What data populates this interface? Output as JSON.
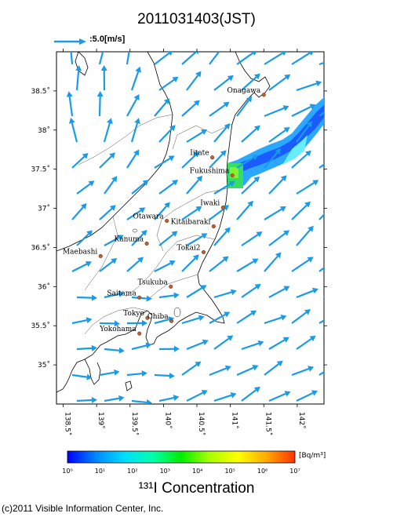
{
  "title": "2011031403(JST)",
  "wind_reference": {
    "label": ":5.0[m/s]",
    "speed_ms": 5.0
  },
  "map": {
    "lon_range": [
      138.4,
      142.4
    ],
    "lat_range": [
      34.5,
      39.0
    ],
    "lat_labels": [
      "38.5˚",
      "38˚",
      "37.5˚",
      "37˚",
      "36.5˚",
      "36˚",
      "35.5˚",
      "35˚"
    ],
    "lat_values": [
      38.5,
      38.0,
      37.5,
      37.0,
      36.5,
      36.0,
      35.5,
      35.0
    ],
    "lon_labels": [
      "138.5˚",
      "139˚",
      "139.5˚",
      "140˚",
      "140.5˚",
      "141˚",
      "141.5˚",
      "142˚"
    ],
    "lon_values": [
      138.5,
      139.0,
      139.5,
      140.0,
      140.5,
      141.0,
      141.5,
      142.0
    ]
  },
  "cities": [
    {
      "name": "Onagawa",
      "lon": 141.5,
      "lat": 38.45
    },
    {
      "name": "Iitate",
      "lon": 140.73,
      "lat": 37.65
    },
    {
      "name": "Fukushima",
      "lon": 141.03,
      "lat": 37.42
    },
    {
      "name": "Iwaki",
      "lon": 140.89,
      "lat": 37.01
    },
    {
      "name": "Otawara",
      "lon": 140.05,
      "lat": 36.84
    },
    {
      "name": "Kitaibaraki",
      "lon": 140.75,
      "lat": 36.77
    },
    {
      "name": "Kanuma",
      "lon": 139.75,
      "lat": 36.55
    },
    {
      "name": "Tokai2",
      "lon": 140.6,
      "lat": 36.44
    },
    {
      "name": "Maebashi",
      "lon": 139.06,
      "lat": 36.39
    },
    {
      "name": "Tsukuba",
      "lon": 140.11,
      "lat": 36.0
    },
    {
      "name": "Saitama",
      "lon": 139.64,
      "lat": 35.86
    },
    {
      "name": "Tokyo",
      "lon": 139.76,
      "lat": 35.6
    },
    {
      "name": "Chiba",
      "lon": 140.12,
      "lat": 35.56
    },
    {
      "name": "Yokohama",
      "lon": 139.64,
      "lat": 35.4
    }
  ],
  "colorbar": {
    "ticks": [
      "10⁰",
      "10¹",
      "10²",
      "10³",
      "10⁴",
      "10⁵",
      "10⁶",
      "10⁷"
    ],
    "unit": "[Bq/m³]",
    "stops": [
      "#0000ff",
      "#0088ff",
      "#00ddff",
      "#00ffaa",
      "#00ee00",
      "#aaff00",
      "#ffff00",
      "#ffaa00",
      "#ff3300"
    ]
  },
  "concentration_label": "¹³¹I Concentration",
  "copyright": "(c)2011 Visible Information Center, Inc.",
  "colors": {
    "wind_arrow": "#1a9be6",
    "plume_dark": "#1a5cff",
    "plume_mid": "#2aa8ff",
    "plume_light": "#66eeff",
    "plume_green": "#33dd66",
    "city_marker": "#b8622f"
  }
}
